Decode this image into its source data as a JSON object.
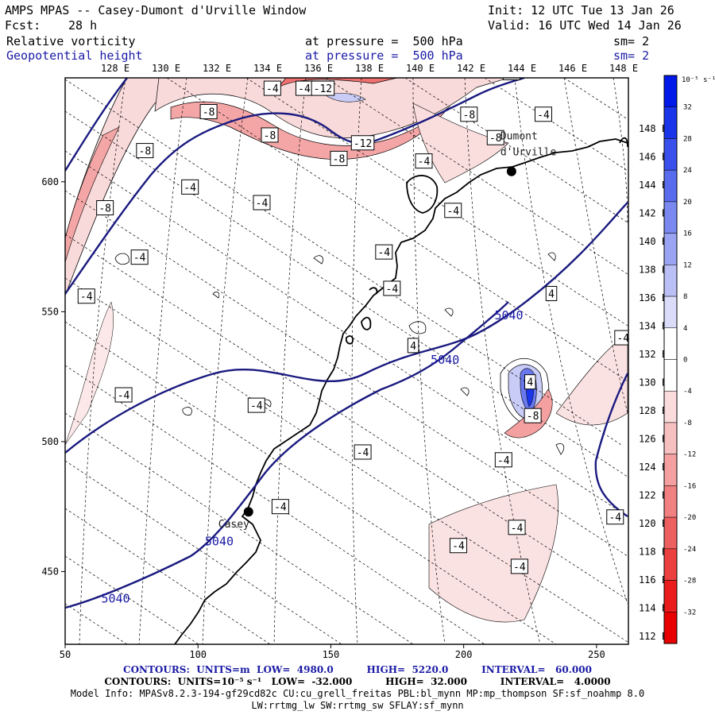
{
  "header": {
    "title": "AMPS MPAS -- Casey-Dumont d'Urville Window",
    "init": "Init: 12 UTC Tue 13 Jan 26",
    "fcst_label": "Fcst:",
    "fcst_value": "28 h",
    "valid": "Valid: 16 UTC Wed 14 Jan 26",
    "field1": "Relative vorticity",
    "field1_pressure": "at pressure =  500 hPa",
    "field1_sm": "sm= 2",
    "field2": "Geopotential height",
    "field2_pressure": "at pressure =  500 hPa",
    "field2_sm": "sm= 2"
  },
  "map": {
    "top_lon_labels": [
      "128 E",
      "130 E",
      "132 E",
      "134 E",
      "136 E",
      "138 E",
      "140 E",
      "142 E",
      "144 E",
      "146 E",
      "148 E"
    ],
    "right_lon_labels": [
      "148 E",
      "146 E",
      "144 E",
      "142 E",
      "140 E",
      "138 E",
      "136 E",
      "134 E",
      "132 E",
      "130 E",
      "128 E",
      "126 E",
      "124 E",
      "122 E",
      "120 E",
      "118 E",
      "116 E",
      "114 E",
      "112 E"
    ],
    "y_ticks": [
      {
        "label": "600",
        "value": 600
      },
      {
        "label": "550",
        "value": 550
      },
      {
        "label": "500",
        "value": 500
      },
      {
        "label": "450",
        "value": 450
      }
    ],
    "x_ticks": [
      {
        "label": "50",
        "value": 50
      },
      {
        "label": "100",
        "value": 100
      },
      {
        "label": "150",
        "value": 150
      },
      {
        "label": "200",
        "value": 200
      },
      {
        "label": "250",
        "value": 250
      }
    ],
    "x_range": [
      50,
      262
    ],
    "y_range": [
      422,
      640
    ],
    "stations": [
      {
        "name": "Casey",
        "x": 119,
        "y": 473
      },
      {
        "name": "Dumont\nd'Urville",
        "x": 218,
        "y": 604
      }
    ],
    "height_labels": [
      {
        "text": "5040",
        "x": 217,
        "y": 547
      },
      {
        "text": "5040",
        "x": 193,
        "y": 530
      },
      {
        "text": "5040",
        "x": 108,
        "y": 460
      },
      {
        "text": "5040",
        "x": 69,
        "y": 438
      }
    ],
    "vort_labels": [
      {
        "text": "-4",
        "x": 128,
        "y": 636
      },
      {
        "text": "-4",
        "x": 140,
        "y": 636
      },
      {
        "text": "-12",
        "x": 147,
        "y": 636
      },
      {
        "text": "-4",
        "x": 218,
        "y": 642
      },
      {
        "text": "-8",
        "x": 104,
        "y": 627
      },
      {
        "text": "-8",
        "x": 202,
        "y": 626
      },
      {
        "text": "-4",
        "x": 230,
        "y": 626
      },
      {
        "text": "-8",
        "x": 127,
        "y": 618
      },
      {
        "text": "-12",
        "x": 162,
        "y": 615
      },
      {
        "text": "-8",
        "x": 80,
        "y": 612
      },
      {
        "text": "-8",
        "x": 153,
        "y": 609
      },
      {
        "text": "-4",
        "x": 185,
        "y": 608
      },
      {
        "text": "-8",
        "x": 212,
        "y": 617
      },
      {
        "text": "-4",
        "x": 97,
        "y": 598
      },
      {
        "text": "-4",
        "x": 124,
        "y": 592
      },
      {
        "text": "-8",
        "x": 65,
        "y": 590
      },
      {
        "text": "-4",
        "x": 196,
        "y": 589
      },
      {
        "text": "-4",
        "x": 78,
        "y": 571
      },
      {
        "text": "-4",
        "x": 170,
        "y": 573
      },
      {
        "text": "-4",
        "x": 173,
        "y": 559
      },
      {
        "text": "-4",
        "x": 58,
        "y": 556
      },
      {
        "text": "4",
        "x": 233,
        "y": 557
      },
      {
        "text": "-4",
        "x": 260,
        "y": 540
      },
      {
        "text": "4",
        "x": 181,
        "y": 537
      },
      {
        "text": "4",
        "x": 225,
        "y": 523
      },
      {
        "text": "-4",
        "x": 72,
        "y": 518
      },
      {
        "text": "-4",
        "x": 122,
        "y": 514
      },
      {
        "text": "-8",
        "x": 226,
        "y": 510
      },
      {
        "text": "-4",
        "x": 162,
        "y": 496
      },
      {
        "text": "-4",
        "x": 215,
        "y": 493
      },
      {
        "text": "-4",
        "x": 131,
        "y": 475
      },
      {
        "text": "-4",
        "x": 257,
        "y": 471
      },
      {
        "text": "-4",
        "x": 220,
        "y": 467
      },
      {
        "text": "-4",
        "x": 198,
        "y": 460
      },
      {
        "text": "-4",
        "x": 221,
        "y": 452
      }
    ]
  },
  "colorbar": {
    "unit": "10⁻⁵ s⁻¹",
    "labels": [
      "32",
      "28",
      "24",
      "20",
      "16",
      "12",
      "8",
      "4",
      "0",
      "-4",
      "-8",
      "-12",
      "-16",
      "-20",
      "-24",
      "-28",
      "-32"
    ],
    "colors": [
      "#0018e8",
      "#1a34ea",
      "#3a50ec",
      "#5a6cee",
      "#7a88f0",
      "#9aa4f3",
      "#bac0f6",
      "#dadcfa",
      "#ffffff",
      "#ffffff",
      "#fadcdc",
      "#f7c0c0",
      "#f4a0a0",
      "#f18080",
      "#ee6060",
      "#ec4040",
      "#ea1c1c",
      "#e80000"
    ]
  },
  "footer": {
    "line1": "CONTOURS:  UNITS=m  LOW=  4980.0          HIGH=  5220.0          INTERVAL=   60.000",
    "line2": "CONTOURS:  UNITS=10⁻⁵ s⁻¹   LOW=  -32.000          HIGH=  32.000          INTERVAL=   4.0000",
    "line3": "Model Info: MPASv8.2.3-194-gf29cd82c CU:cu_grell_freitas PBL:bl_mynn MP:mp_thompson SF:sf_noahmp 8.0",
    "line4": "LW:rrtmg_lw SW:rrtmg_sw SFLAY:sf_mynn"
  }
}
